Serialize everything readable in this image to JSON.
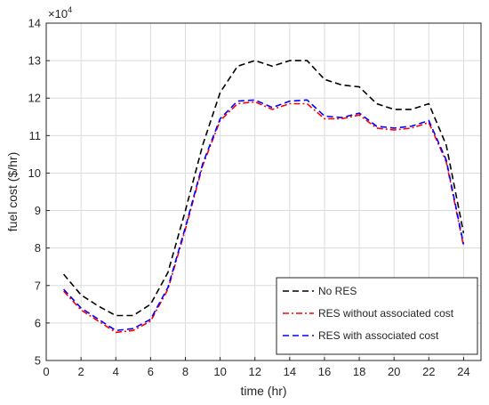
{
  "chart_data": {
    "type": "line",
    "xlabel": "time (hr)",
    "ylabel": "fuel cost ($/hr)",
    "y_multiplier": "×10",
    "y_multiplier_exponent": "4",
    "xlim": [
      0,
      25
    ],
    "ylim": [
      5,
      14
    ],
    "x_ticks": [
      "0",
      "2",
      "4",
      "6",
      "8",
      "10",
      "12",
      "14",
      "16",
      "18",
      "20",
      "22",
      "24"
    ],
    "y_ticks": [
      "5",
      "6",
      "7",
      "8",
      "9",
      "10",
      "11",
      "12",
      "13",
      "14"
    ],
    "grid": true,
    "legend_position": "bottom-right",
    "x": [
      1,
      2,
      3,
      4,
      5,
      6,
      7,
      8,
      9,
      10,
      11,
      12,
      13,
      14,
      15,
      16,
      17,
      18,
      19,
      20,
      21,
      22,
      23,
      24
    ],
    "series": [
      {
        "name": "No RES",
        "color": "#000000",
        "dash": "dashed",
        "values": [
          7.3,
          6.75,
          6.45,
          6.2,
          6.2,
          6.5,
          7.35,
          9.0,
          10.75,
          12.15,
          12.85,
          13.0,
          12.85,
          13.0,
          13.0,
          12.5,
          12.35,
          12.3,
          11.85,
          11.7,
          11.7,
          11.85,
          10.75,
          8.4
        ]
      },
      {
        "name": "RES without associated cost",
        "color": "#ff0000",
        "dash": "dashdot",
        "values": [
          6.85,
          6.35,
          6.05,
          5.75,
          5.8,
          6.05,
          6.9,
          8.5,
          10.2,
          11.4,
          11.85,
          11.9,
          11.7,
          11.85,
          11.85,
          11.45,
          11.45,
          11.55,
          11.2,
          11.15,
          11.2,
          11.35,
          10.3,
          8.05
        ]
      },
      {
        "name": "RES with associated cost",
        "color": "#0000ff",
        "dash": "dashed",
        "values": [
          6.9,
          6.4,
          6.1,
          5.8,
          5.85,
          6.1,
          6.95,
          8.55,
          10.25,
          11.45,
          11.92,
          11.95,
          11.75,
          11.92,
          11.95,
          11.52,
          11.48,
          11.6,
          11.25,
          11.2,
          11.25,
          11.4,
          10.35,
          8.1
        ]
      }
    ]
  }
}
